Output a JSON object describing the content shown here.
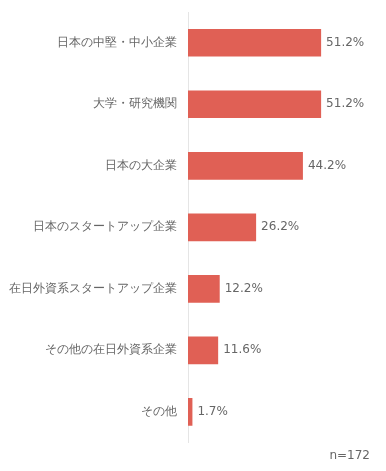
{
  "chart_data": {
    "type": "bar",
    "orientation": "horizontal",
    "categories": [
      "日本の中堅・中小企業",
      "大学・研究機関",
      "日本の大企業",
      "日本のスタートアップ企業",
      "在日外資系スタートアップ企業",
      "その他の在日外資系企業",
      "その他"
    ],
    "values": [
      51.2,
      51.2,
      44.2,
      26.2,
      12.2,
      11.6,
      1.7
    ],
    "value_labels": [
      "51.2%",
      "51.2%",
      "44.2%",
      "26.2%",
      "12.2%",
      "11.6%",
      "1.7%"
    ],
    "data_labels": true,
    "color": "#E06055",
    "xlim": [
      0,
      70
    ],
    "tick_labels": "y",
    "grid": false,
    "annotations": [
      {
        "text": "n=172"
      }
    ]
  }
}
